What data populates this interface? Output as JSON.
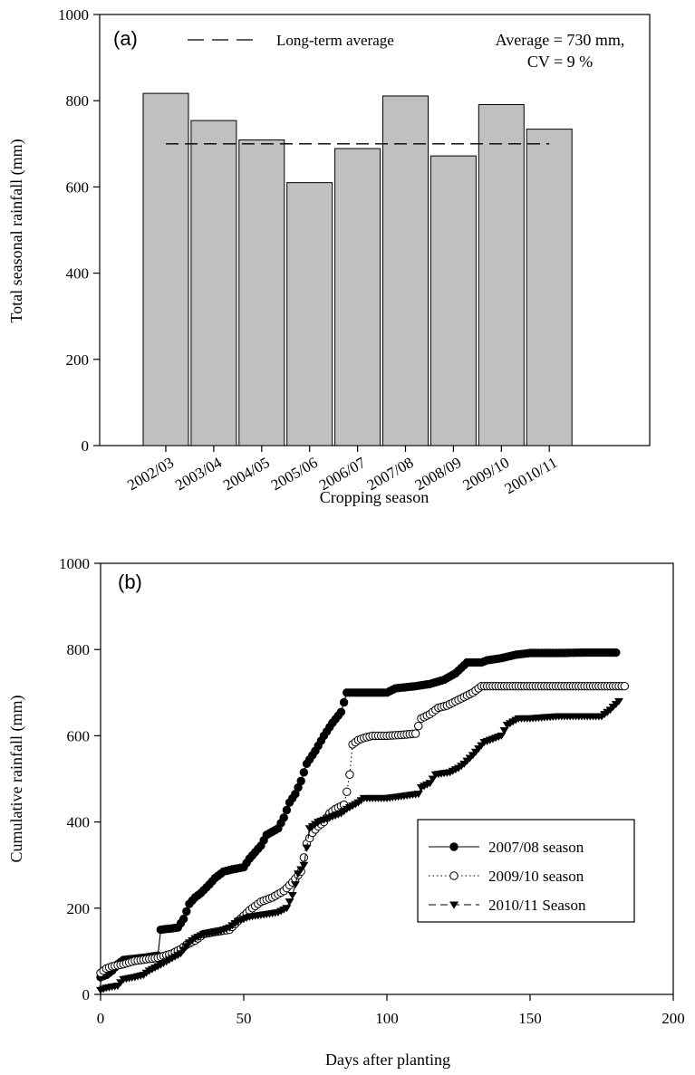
{
  "chart_data": [
    {
      "type": "bar",
      "panel_label": "(a)",
      "xlabel": "Cropping season",
      "ylabel": "Total seasonal rainfall (mm)",
      "ylim": [
        0,
        1000
      ],
      "yticks": [
        "0",
        "200",
        "400",
        "600",
        "800",
        "1000"
      ],
      "categories": [
        "2002/03",
        "2003/04",
        "2004/05",
        "2005/06",
        "2006/07",
        "2007/08",
        "2008/09",
        "2009/10",
        "20010/11"
      ],
      "values": [
        817,
        754,
        709,
        610,
        689,
        811,
        672,
        791,
        734
      ],
      "bar_color": "#c0c0c0",
      "reference_line": {
        "label": "Long-term average",
        "value": 700,
        "style": "dashed"
      },
      "annotation": {
        "line1": "Average = 730 mm,",
        "line2": "CV = 9 %"
      }
    },
    {
      "type": "line",
      "panel_label": "(b)",
      "xlabel": "Days after planting",
      "ylabel": "Cumulative rainfall (mm)",
      "xlim": [
        0,
        200
      ],
      "ylim": [
        0,
        1000
      ],
      "xticks": [
        "0",
        "50",
        "100",
        "150",
        "200"
      ],
      "yticks": [
        "0",
        "200",
        "400",
        "600",
        "800",
        "1000"
      ],
      "legend_position": "lower-right",
      "series": [
        {
          "name": "2007/08 season",
          "marker": "filled-circle",
          "line": "solid",
          "points": [
            [
              0,
              40
            ],
            [
              2,
              45
            ],
            [
              4,
              55
            ],
            [
              6,
              70
            ],
            [
              8,
              80
            ],
            [
              15,
              85
            ],
            [
              20,
              90
            ],
            [
              21,
              150
            ],
            [
              27,
              155
            ],
            [
              29,
              175
            ],
            [
              31,
              210
            ],
            [
              33,
              225
            ],
            [
              35,
              235
            ],
            [
              38,
              255
            ],
            [
              40,
              270
            ],
            [
              43,
              285
            ],
            [
              46,
              290
            ],
            [
              50,
              295
            ],
            [
              52,
              315
            ],
            [
              56,
              345
            ],
            [
              58,
              370
            ],
            [
              62,
              385
            ],
            [
              64,
              410
            ],
            [
              66,
              445
            ],
            [
              68,
              465
            ],
            [
              70,
              495
            ],
            [
              72,
              535
            ],
            [
              75,
              565
            ],
            [
              78,
              600
            ],
            [
              81,
              630
            ],
            [
              84,
              655
            ],
            [
              86,
              700
            ],
            [
              95,
              700
            ],
            [
              100,
              700
            ],
            [
              103,
              710
            ],
            [
              110,
              715
            ],
            [
              115,
              720
            ],
            [
              120,
              730
            ],
            [
              124,
              745
            ],
            [
              128,
              770
            ],
            [
              133,
              770
            ],
            [
              135,
              775
            ],
            [
              140,
              780
            ],
            [
              145,
              788
            ],
            [
              150,
              792
            ],
            [
              160,
              792
            ],
            [
              170,
              793
            ],
            [
              180,
              793
            ]
          ]
        },
        {
          "name": "2009/10 season",
          "marker": "open-circle",
          "line": "dotted",
          "points": [
            [
              0,
              50
            ],
            [
              2,
              60
            ],
            [
              4,
              65
            ],
            [
              8,
              70
            ],
            [
              12,
              78
            ],
            [
              20,
              85
            ],
            [
              25,
              95
            ],
            [
              28,
              105
            ],
            [
              30,
              115
            ],
            [
              33,
              125
            ],
            [
              36,
              140
            ],
            [
              40,
              145
            ],
            [
              45,
              150
            ],
            [
              48,
              170
            ],
            [
              52,
              195
            ],
            [
              56,
              215
            ],
            [
              60,
              225
            ],
            [
              64,
              240
            ],
            [
              67,
              260
            ],
            [
              70,
              285
            ],
            [
              72,
              350
            ],
            [
              74,
              375
            ],
            [
              76,
              390
            ],
            [
              78,
              400
            ],
            [
              80,
              420
            ],
            [
              82,
              430
            ],
            [
              85,
              440
            ],
            [
              86,
              470
            ],
            [
              87,
              510
            ],
            [
              88,
              580
            ],
            [
              90,
              590
            ],
            [
              92,
              595
            ],
            [
              95,
              600
            ],
            [
              100,
              600
            ],
            [
              105,
              602
            ],
            [
              110,
              605
            ],
            [
              112,
              640
            ],
            [
              115,
              650
            ],
            [
              118,
              665
            ],
            [
              121,
              670
            ],
            [
              124,
              680
            ],
            [
              127,
              690
            ],
            [
              130,
              700
            ],
            [
              133,
              715
            ],
            [
              140,
              715
            ],
            [
              160,
              715
            ],
            [
              183,
              715
            ]
          ]
        },
        {
          "name": "2010/11 Season",
          "marker": "filled-triangle-down",
          "line": "dashed",
          "points": [
            [
              0,
              10
            ],
            [
              2,
              15
            ],
            [
              6,
              20
            ],
            [
              8,
              35
            ],
            [
              12,
              40
            ],
            [
              15,
              45
            ],
            [
              17,
              55
            ],
            [
              20,
              65
            ],
            [
              24,
              80
            ],
            [
              28,
              95
            ],
            [
              31,
              120
            ],
            [
              33,
              130
            ],
            [
              36,
              140
            ],
            [
              41,
              145
            ],
            [
              45,
              155
            ],
            [
              48,
              170
            ],
            [
              52,
              180
            ],
            [
              57,
              185
            ],
            [
              62,
              190
            ],
            [
              65,
              200
            ],
            [
              67,
              230
            ],
            [
              69,
              280
            ],
            [
              71,
              300
            ],
            [
              72,
              340
            ],
            [
              73,
              385
            ],
            [
              76,
              400
            ],
            [
              80,
              410
            ],
            [
              84,
              420
            ],
            [
              86,
              430
            ],
            [
              90,
              445
            ],
            [
              92,
              455
            ],
            [
              100,
              455
            ],
            [
              111,
              465
            ],
            [
              112,
              480
            ],
            [
              115,
              490
            ],
            [
              117,
              510
            ],
            [
              122,
              515
            ],
            [
              125,
              525
            ],
            [
              127,
              535
            ],
            [
              130,
              555
            ],
            [
              134,
              585
            ],
            [
              140,
              600
            ],
            [
              142,
              625
            ],
            [
              146,
              640
            ],
            [
              150,
              640
            ],
            [
              160,
              645
            ],
            [
              175,
              645
            ],
            [
              178,
              660
            ],
            [
              181,
              680
            ]
          ]
        }
      ]
    }
  ]
}
